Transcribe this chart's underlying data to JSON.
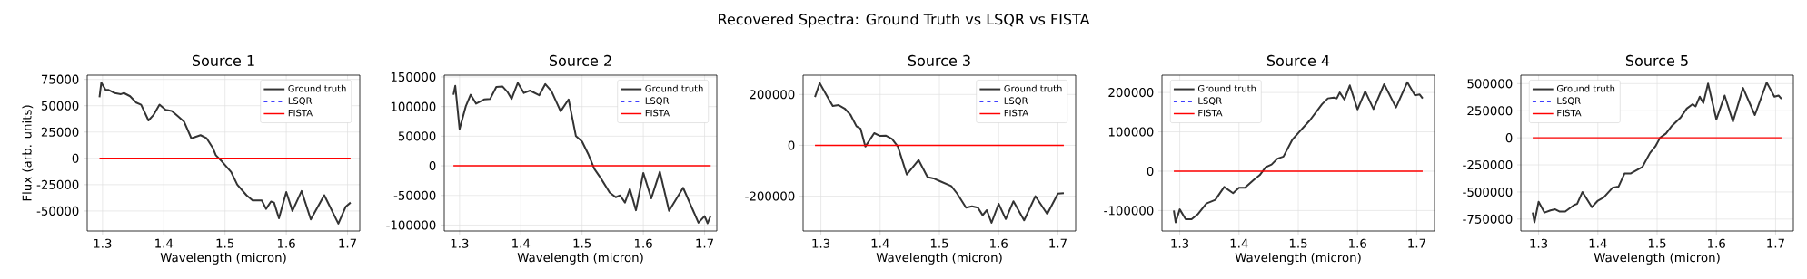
{
  "chart_data": [
    {
      "type": "line",
      "title": "Source 1",
      "xlabel": "Wavelength (micron)",
      "ylabel": "Flux (arb. units)",
      "annotations": [
        "Recovered Spectra: Ground Truth vs LSQR vs FISTA"
      ],
      "xlim": [
        1.275,
        1.72
      ],
      "ylim": [
        -69000,
        79000
      ],
      "xticks": [
        1.3,
        1.4,
        1.5,
        1.6,
        1.7
      ],
      "yticks": [
        -50000,
        -25000,
        0,
        25000,
        50000,
        75000
      ],
      "grid": true,
      "legend": "top right",
      "series": [
        {
          "name": "Ground truth",
          "color": "#333333",
          "x": [
            1.295,
            1.298,
            1.305,
            1.31,
            1.32,
            1.33,
            1.335,
            1.345,
            1.355,
            1.363,
            1.375,
            1.383,
            1.393,
            1.403,
            1.413,
            1.423,
            1.433,
            1.445,
            1.46,
            1.47,
            1.48,
            1.485,
            1.495,
            1.51,
            1.52,
            1.535,
            1.545,
            1.555,
            1.56,
            1.567,
            1.575,
            1.58,
            1.588,
            1.6,
            1.61,
            1.625,
            1.64,
            1.662,
            1.685,
            1.697,
            1.705
          ],
          "values": [
            58000,
            72000,
            65000,
            65000,
            62000,
            61000,
            62000,
            59000,
            53000,
            51000,
            36000,
            41000,
            51000,
            46000,
            45000,
            40000,
            35000,
            19000,
            22000,
            19000,
            10000,
            3000,
            -3000,
            -13000,
            -25000,
            -35000,
            -40000,
            -40000,
            -40000,
            -48000,
            -41000,
            -42000,
            -57000,
            -32000,
            -50000,
            -31000,
            -58000,
            -35000,
            -62000,
            -46000,
            -42000
          ]
        },
        {
          "name": "LSQR",
          "color": "#0000ff",
          "line_style": "dashed",
          "values": [
            null,
            null
          ]
        },
        {
          "name": "FISTA",
          "color": "#ff0000",
          "x": [
            1.295,
            1.705
          ],
          "values": [
            0,
            0
          ]
        }
      ]
    },
    {
      "type": "line",
      "title": "Source 2",
      "xlabel": "Wavelength (micron)",
      "xlim": [
        1.275,
        1.72
      ],
      "ylim": [
        -110000,
        153000
      ],
      "xticks": [
        1.3,
        1.4,
        1.5,
        1.6,
        1.7
      ],
      "yticks": [
        -100000,
        -50000,
        0,
        50000,
        100000,
        150000
      ],
      "grid": true,
      "legend": "top right",
      "series": [
        {
          "name": "Ground truth",
          "color": "#333333",
          "x": [
            1.29,
            1.293,
            1.3,
            1.31,
            1.318,
            1.327,
            1.34,
            1.35,
            1.36,
            1.37,
            1.378,
            1.385,
            1.395,
            1.405,
            1.415,
            1.43,
            1.44,
            1.45,
            1.465,
            1.478,
            1.49,
            1.5,
            1.51,
            1.52,
            1.53,
            1.545,
            1.555,
            1.562,
            1.57,
            1.578,
            1.588,
            1.6,
            1.613,
            1.627,
            1.642,
            1.665,
            1.69,
            1.7,
            1.705,
            1.71
          ],
          "values": [
            120000,
            135000,
            62000,
            100000,
            120000,
            105000,
            112000,
            113000,
            133000,
            134000,
            125000,
            113000,
            140000,
            123000,
            127000,
            119000,
            138000,
            126000,
            92000,
            112000,
            50000,
            41000,
            20000,
            -5000,
            -20000,
            -45000,
            -53000,
            -50000,
            -62000,
            -39000,
            -75000,
            -12000,
            -55000,
            -10000,
            -76000,
            -37000,
            -96000,
            -85000,
            -97000,
            -84000
          ]
        },
        {
          "name": "LSQR",
          "color": "#0000ff",
          "line_style": "dashed",
          "values": [
            null,
            null
          ]
        },
        {
          "name": "FISTA",
          "color": "#ff0000",
          "x": [
            1.29,
            1.71
          ],
          "values": [
            0,
            0
          ]
        }
      ]
    },
    {
      "type": "line",
      "title": "Source 3",
      "xlabel": "Wavelength (micron)",
      "xlim": [
        1.27,
        1.73
      ],
      "ylim": [
        -337000,
        276000
      ],
      "xticks": [
        1.3,
        1.4,
        1.5,
        1.6,
        1.7
      ],
      "yticks": [
        -200000,
        0,
        200000
      ],
      "grid": true,
      "legend": "top right",
      "series": [
        {
          "name": "Ground truth",
          "color": "#333333",
          "x": [
            1.29,
            1.298,
            1.31,
            1.32,
            1.33,
            1.34,
            1.35,
            1.36,
            1.367,
            1.375,
            1.39,
            1.4,
            1.41,
            1.42,
            1.43,
            1.445,
            1.465,
            1.48,
            1.49,
            1.5,
            1.52,
            1.53,
            1.545,
            1.555,
            1.565,
            1.573,
            1.58,
            1.588,
            1.6,
            1.612,
            1.625,
            1.643,
            1.662,
            1.682,
            1.7,
            1.71
          ],
          "values": [
            190000,
            245000,
            195000,
            155000,
            158000,
            145000,
            120000,
            75000,
            65000,
            -5000,
            48000,
            37000,
            38000,
            25000,
            -5000,
            -115000,
            -58000,
            -125000,
            -130000,
            -140000,
            -160000,
            -190000,
            -245000,
            -240000,
            -245000,
            -275000,
            -255000,
            -305000,
            -230000,
            -290000,
            -220000,
            -295000,
            -200000,
            -270000,
            -190000,
            -188000
          ]
        },
        {
          "name": "LSQR",
          "color": "#0000ff",
          "line_style": "dashed",
          "values": [
            null,
            null
          ]
        },
        {
          "name": "FISTA",
          "color": "#ff0000",
          "x": [
            1.29,
            1.71
          ],
          "values": [
            0,
            0
          ]
        }
      ]
    },
    {
      "type": "line",
      "title": "Source 4",
      "xlabel": "Wavelength (micron)",
      "xlim": [
        1.27,
        1.73
      ],
      "ylim": [
        -152000,
        244000
      ],
      "xticks": [
        1.3,
        1.4,
        1.5,
        1.6,
        1.7
      ],
      "yticks": [
        -100000,
        0,
        100000,
        200000
      ],
      "grid": true,
      "legend": "top left",
      "series": [
        {
          "name": "Ground truth",
          "color": "#333333",
          "x": [
            1.29,
            1.293,
            1.3,
            1.31,
            1.32,
            1.33,
            1.345,
            1.36,
            1.375,
            1.39,
            1.4,
            1.41,
            1.425,
            1.435,
            1.445,
            1.455,
            1.465,
            1.475,
            1.49,
            1.5,
            1.52,
            1.54,
            1.55,
            1.56,
            1.565,
            1.57,
            1.578,
            1.587,
            1.6,
            1.613,
            1.627,
            1.645,
            1.665,
            1.684,
            1.697,
            1.705,
            1.71
          ],
          "values": [
            -100000,
            -130000,
            -97000,
            -122000,
            -122000,
            -110000,
            -82000,
            -73000,
            -40000,
            -56000,
            -42000,
            -42000,
            -22000,
            -10000,
            10000,
            17000,
            32000,
            37000,
            80000,
            97000,
            130000,
            170000,
            185000,
            187000,
            185000,
            200000,
            182000,
            218000,
            157000,
            203000,
            158000,
            221000,
            162000,
            226000,
            193000,
            195000,
            185000
          ]
        },
        {
          "name": "LSQR",
          "color": "#0000ff",
          "line_style": "dashed",
          "values": [
            null,
            null
          ]
        },
        {
          "name": "FISTA",
          "color": "#ff0000",
          "x": [
            1.29,
            1.71
          ],
          "values": [
            0,
            0
          ]
        }
      ]
    },
    {
      "type": "line",
      "title": "Source 5",
      "xlabel": "Wavelength (micron)",
      "xlim": [
        1.27,
        1.73
      ],
      "ylim": [
        -860000,
        578000
      ],
      "xticks": [
        1.3,
        1.4,
        1.5,
        1.6,
        1.7
      ],
      "yticks": [
        -750000,
        -500000,
        -250000,
        0,
        250000,
        500000
      ],
      "grid": true,
      "legend": "top left",
      "series": [
        {
          "name": "Ground truth",
          "color": "#333333",
          "x": [
            1.29,
            1.293,
            1.3,
            1.31,
            1.32,
            1.328,
            1.335,
            1.345,
            1.36,
            1.365,
            1.374,
            1.39,
            1.4,
            1.41,
            1.425,
            1.435,
            1.445,
            1.455,
            1.475,
            1.488,
            1.497,
            1.505,
            1.515,
            1.525,
            1.54,
            1.55,
            1.56,
            1.565,
            1.572,
            1.578,
            1.586,
            1.6,
            1.614,
            1.628,
            1.645,
            1.665,
            1.685,
            1.698,
            1.705,
            1.71
          ],
          "values": [
            -690000,
            -780000,
            -590000,
            -690000,
            -670000,
            -660000,
            -680000,
            -680000,
            -620000,
            -610000,
            -500000,
            -640000,
            -580000,
            -550000,
            -460000,
            -450000,
            -330000,
            -330000,
            -270000,
            -140000,
            -80000,
            0,
            40000,
            110000,
            190000,
            270000,
            310000,
            290000,
            380000,
            320000,
            500000,
            170000,
            390000,
            150000,
            460000,
            210000,
            510000,
            380000,
            390000,
            360000
          ]
        },
        {
          "name": "LSQR",
          "color": "#0000ff",
          "line_style": "dashed",
          "values": [
            null,
            null
          ]
        },
        {
          "name": "FISTA",
          "color": "#ff0000",
          "x": [
            1.29,
            1.71
          ],
          "values": [
            0,
            0
          ]
        }
      ]
    }
  ]
}
